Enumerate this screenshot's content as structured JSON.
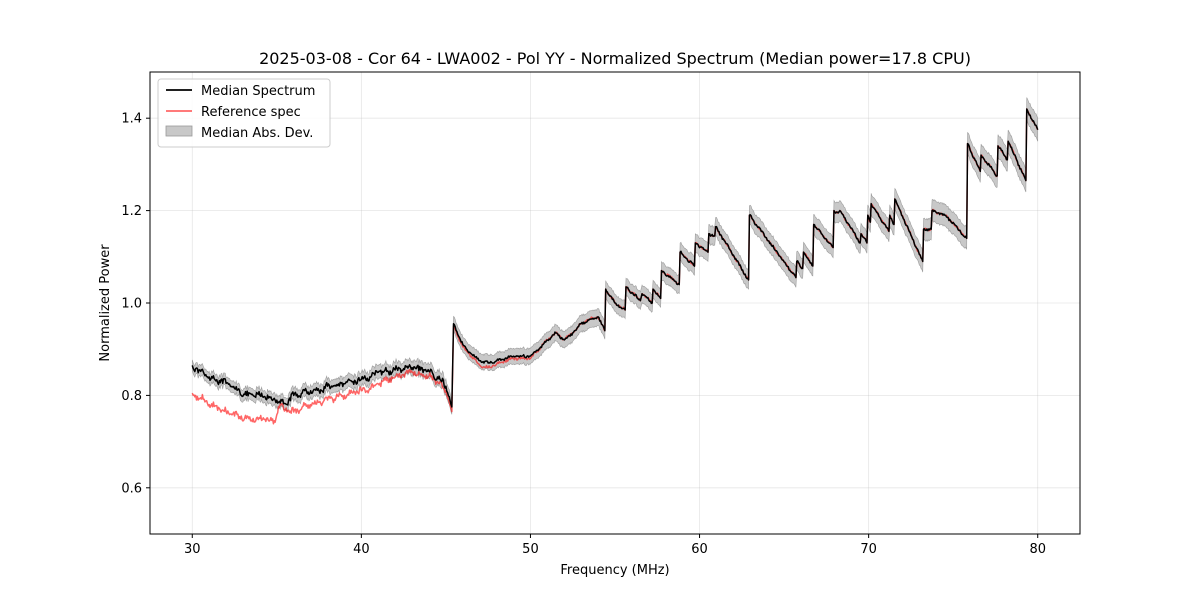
{
  "chart_data": {
    "type": "line",
    "title": "2025-03-08 - Cor 64 - LWA002 - Pol YY - Normalized Spectrum (Median power=17.8 CPU)",
    "xlabel": "Frequency (MHz)",
    "ylabel": "Normalized Power",
    "xlim": [
      27.5,
      82.5
    ],
    "ylim": [
      0.5,
      1.5
    ],
    "xticks": [
      30,
      40,
      50,
      60,
      70,
      80
    ],
    "yticks": [
      0.6,
      0.8,
      1.0,
      1.2,
      1.4
    ],
    "grid": true,
    "legend_position": "upper-left",
    "legend": [
      "Median Spectrum",
      "Reference spec",
      "Median Abs. Dev."
    ],
    "colors": {
      "median": "#000000",
      "reference": "#ff0000",
      "mad_fill": "#c8c8c8",
      "mad_edge": "#808080"
    },
    "x": [
      30,
      30.2,
      30.5,
      30.8,
      31.0,
      31.3,
      31.6,
      32.0,
      32.4,
      32.8,
      33.2,
      33.6,
      34.0,
      34.3,
      34.6,
      34.9,
      35.1,
      35.4,
      35.7,
      36.0,
      36.5,
      37.0,
      37.5,
      38.0,
      38.5,
      39.0,
      39.5,
      40.0,
      40.5,
      41.0,
      41.5,
      42.0,
      42.5,
      43.0,
      43.5,
      44.0,
      44.5,
      45.0,
      45.35,
      45.45,
      46.0,
      46.5,
      47.0,
      47.5,
      48.0,
      48.5,
      49.0,
      49.5,
      50.0,
      50.5,
      51.0,
      51.5,
      52.0,
      52.5,
      53.0,
      53.5,
      54.0,
      54.4,
      54.45,
      55.0,
      55.6,
      55.65,
      56.5,
      56.6,
      57.2,
      57.25,
      57.7,
      57.75,
      58.8,
      58.85,
      59.7,
      59.75,
      60.5,
      60.55,
      60.9,
      60.95,
      62.9,
      62.95,
      65.7,
      65.75,
      66.1,
      66.15,
      66.7,
      66.75,
      67.9,
      67.95,
      68.2,
      68.3,
      69.5,
      69.55,
      69.9,
      69.95,
      70.1,
      70.15,
      71.2,
      71.25,
      71.5,
      71.55,
      73.2,
      73.25,
      73.7,
      73.75,
      74.5,
      74.55,
      75.8,
      75.85,
      76.6,
      76.65,
      77.6,
      77.65,
      78.2,
      78.25,
      79.3,
      79.35,
      80.0
    ],
    "series": [
      {
        "name": "Median Spectrum",
        "values": [
          0.865,
          0.858,
          0.852,
          0.845,
          0.84,
          0.836,
          0.832,
          0.826,
          0.818,
          0.81,
          0.8,
          0.8,
          0.8,
          0.797,
          0.795,
          0.79,
          0.785,
          0.782,
          0.79,
          0.8,
          0.805,
          0.81,
          0.81,
          0.82,
          0.82,
          0.825,
          0.83,
          0.835,
          0.84,
          0.85,
          0.852,
          0.855,
          0.858,
          0.86,
          0.855,
          0.852,
          0.84,
          0.82,
          0.775,
          0.955,
          0.91,
          0.89,
          0.875,
          0.87,
          0.875,
          0.88,
          0.885,
          0.885,
          0.885,
          0.9,
          0.92,
          0.935,
          0.92,
          0.935,
          0.955,
          0.965,
          0.97,
          0.94,
          1.03,
          1.0,
          0.985,
          1.035,
          1.005,
          1.02,
          1.0,
          1.03,
          1.01,
          1.07,
          1.04,
          1.11,
          1.08,
          1.13,
          1.11,
          1.15,
          1.145,
          1.165,
          1.05,
          1.19,
          1.055,
          1.09,
          1.075,
          1.11,
          1.08,
          1.17,
          1.12,
          1.2,
          1.195,
          1.2,
          1.13,
          1.15,
          1.13,
          1.19,
          1.175,
          1.215,
          1.155,
          1.19,
          1.17,
          1.225,
          1.09,
          1.16,
          1.16,
          1.2,
          1.19,
          1.19,
          1.14,
          1.345,
          1.285,
          1.32,
          1.275,
          1.34,
          1.31,
          1.35,
          1.265,
          1.42,
          1.375
        ]
      },
      {
        "name": "Reference spec",
        "values": [
          0.805,
          0.8,
          0.795,
          0.788,
          0.78,
          0.776,
          0.772,
          0.765,
          0.76,
          0.754,
          0.75,
          0.75,
          0.75,
          0.748,
          0.746,
          0.742,
          0.776,
          0.772,
          0.768,
          0.764,
          0.775,
          0.78,
          0.785,
          0.79,
          0.795,
          0.8,
          0.805,
          0.81,
          0.815,
          0.825,
          0.832,
          0.84,
          0.845,
          0.85,
          0.845,
          0.842,
          0.83,
          0.81,
          0.765,
          0.95,
          0.905,
          0.885,
          0.865,
          0.86,
          0.868,
          0.875,
          0.88,
          0.88,
          0.88,
          0.9,
          0.92,
          0.935,
          0.92,
          0.935,
          0.955,
          0.965,
          0.97,
          0.94,
          1.03,
          1.0,
          0.985,
          1.035,
          1.005,
          1.02,
          1.0,
          1.03,
          1.01,
          1.07,
          1.04,
          1.11,
          1.08,
          1.13,
          1.11,
          1.15,
          1.145,
          1.165,
          1.05,
          1.19,
          1.055,
          1.09,
          1.075,
          1.11,
          1.08,
          1.17,
          1.12,
          1.2,
          1.195,
          1.2,
          1.13,
          1.15,
          1.13,
          1.19,
          1.175,
          1.215,
          1.155,
          1.19,
          1.17,
          1.225,
          1.09,
          1.16,
          1.16,
          1.2,
          1.19,
          1.19,
          1.14,
          1.345,
          1.285,
          1.32,
          1.275,
          1.34,
          1.31,
          1.35,
          1.265,
          1.42,
          1.375
        ]
      }
    ],
    "mad_band": {
      "name": "Median Abs. Dev.",
      "halfwidth_low_freq": 0.012,
      "halfwidth_high_freq": 0.025
    }
  }
}
